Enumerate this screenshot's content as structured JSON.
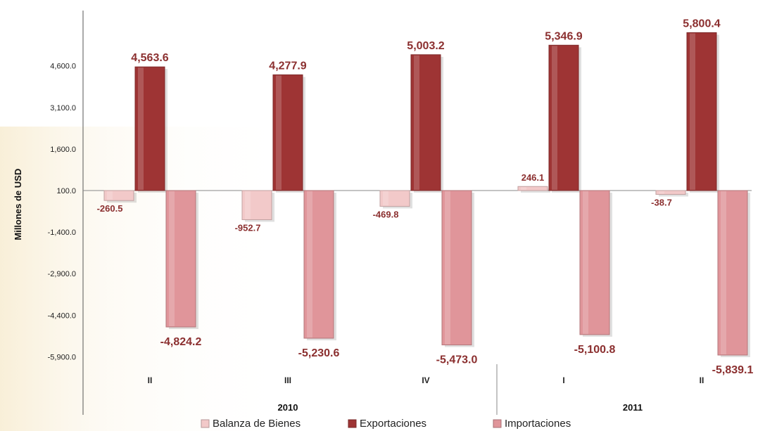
{
  "chart_data": {
    "type": "bar",
    "title": "",
    "ylabel": "Millones de USD",
    "xlabel": "",
    "y_ticks": [
      4600.0,
      3100.0,
      1600.0,
      100.0,
      -1400.0,
      -2900.0,
      -4400.0,
      -5900.0
    ],
    "y_tick_labels": [
      "4,600.0",
      "3,100.0",
      "1,600.0",
      "100.0",
      "-1,400.0",
      "-2,900.0",
      "-4,400.0",
      "-5,900.0"
    ],
    "ylim": [
      -6900,
      6000
    ],
    "baseline": 100.0,
    "categories": [
      "II",
      "III",
      "IV",
      "I",
      "II"
    ],
    "groups": [
      {
        "label": "2010",
        "categories": [
          0,
          1,
          2
        ]
      },
      {
        "label": "2011",
        "categories": [
          3,
          4
        ]
      }
    ],
    "series": [
      {
        "name": "Balanza de Bienes",
        "color": "#f2c9c9",
        "values": [
          -260.5,
          -952.7,
          -469.8,
          246.1,
          -38.7
        ],
        "labels": [
          "-260.5",
          "-952.7",
          "-469.8",
          "246.1",
          "-38.7"
        ]
      },
      {
        "name": "Exportaciones",
        "color": "#9e3434",
        "values": [
          4563.6,
          4277.9,
          5003.2,
          5346.9,
          5800.4
        ],
        "labels": [
          "4,563.6",
          "4,277.9",
          "5,003.2",
          "5,346.9",
          "5,800.4"
        ]
      },
      {
        "name": "Importaciones",
        "color": "#e0959a",
        "values": [
          -4824.2,
          -5230.6,
          -5473.0,
          -5100.8,
          -5839.1
        ],
        "labels": [
          "-4,824.2",
          "-5,230.6",
          "-5,473.0",
          "-5,100.8",
          "-5,839.1"
        ]
      }
    ],
    "legend": "bottom",
    "grid": false
  }
}
